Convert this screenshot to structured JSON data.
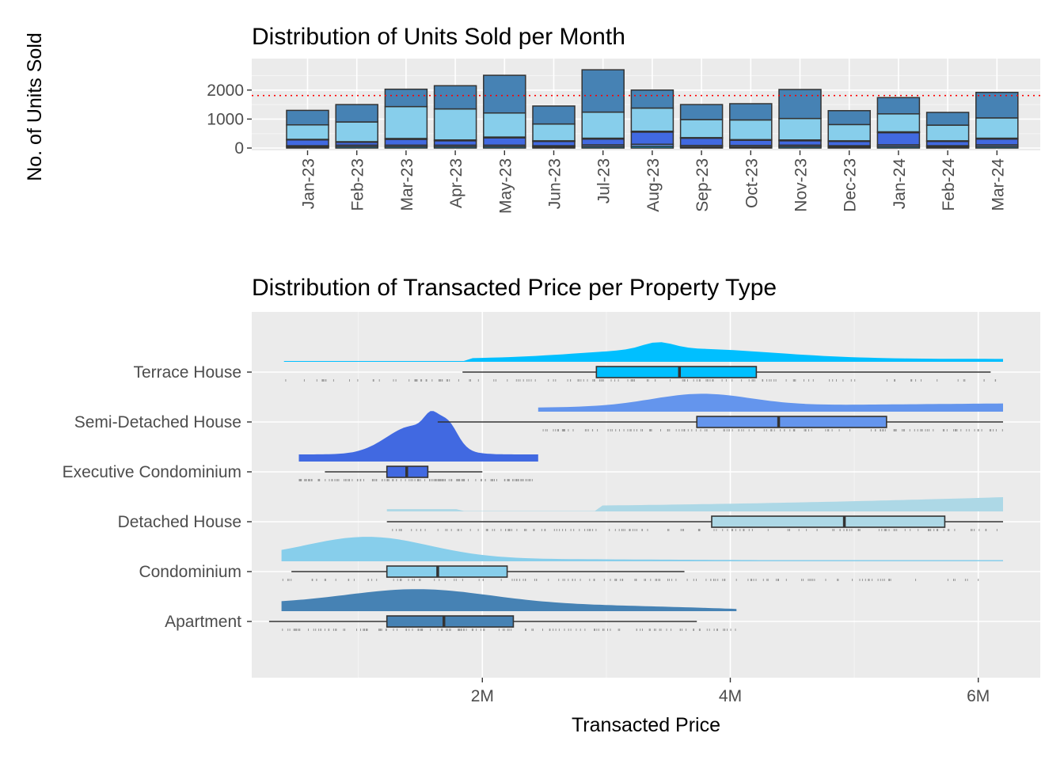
{
  "chart_data": [
    {
      "type": "bar",
      "title": "Distribution of Units Sold per Month",
      "ylabel": "No. of Units Sold",
      "xlabel": "",
      "ylim": [
        0,
        2950
      ],
      "yticks": [
        0,
        1000,
        2000
      ],
      "ytick_labels": [
        "0",
        "1000",
        "2000"
      ],
      "reference_line": {
        "value": 1810,
        "style": "dotted",
        "color": "#ff0000"
      },
      "categories": [
        "Jan-23",
        "Feb-23",
        "Mar-23",
        "Apr-23",
        "May-23",
        "Jun-23",
        "Jul-23",
        "Aug-23",
        "Sep-23",
        "Oct-23",
        "Nov-23",
        "Dec-23",
        "Jan-24",
        "Feb-24",
        "Mar-24"
      ],
      "stack_order": [
        "Apartment",
        "Condominium",
        "Detached House",
        "Executive Condominium",
        "Semi-Detached House",
        "Terrace House"
      ],
      "series": [
        {
          "color": "#00bfff",
          "values": [
            40,
            50,
            50,
            50,
            50,
            40,
            50,
            60,
            40,
            40,
            50,
            40,
            50,
            40,
            50
          ]
        },
        {
          "color": "#6495ed",
          "values": [
            40,
            50,
            50,
            50,
            50,
            40,
            60,
            70,
            50,
            50,
            50,
            40,
            60,
            40,
            60
          ]
        },
        {
          "color": "#4169e1",
          "values": [
            200,
            100,
            200,
            150,
            250,
            150,
            200,
            420,
            250,
            180,
            150,
            150,
            420,
            150,
            200
          ]
        },
        {
          "color": "#add8e6",
          "values": [
            20,
            20,
            30,
            30,
            30,
            20,
            30,
            30,
            20,
            20,
            30,
            20,
            30,
            20,
            30
          ]
        },
        {
          "color": "#87ceeb",
          "values": [
            500,
            680,
            1100,
            1070,
            830,
            580,
            900,
            800,
            620,
            680,
            740,
            560,
            620,
            540,
            700
          ]
        },
        {
          "color": "#4682b4",
          "values": [
            500,
            600,
            600,
            800,
            1300,
            620,
            1460,
            620,
            520,
            560,
            1000,
            480,
            560,
            440,
            880
          ]
        }
      ]
    },
    {
      "type": "raincloud",
      "title": "Distribution of Transacted Price per Property Type",
      "xlabel": "Transacted Price",
      "ylabel": "",
      "xlim": [
        140000,
        6500000
      ],
      "xticks": [
        2000000,
        4000000,
        6000000
      ],
      "xtick_labels": [
        "2M",
        "4M",
        "6M"
      ],
      "categories": [
        "Apartment",
        "Condominium",
        "Detached House",
        "Executive Condominium",
        "Semi-Detached House",
        "Terrace House"
      ],
      "boxes": [
        {
          "category": "Apartment",
          "color": "#4682b4",
          "whisker_low": 280000,
          "q1": 1230000,
          "median": 1690000,
          "q3": 2250000,
          "whisker_high": 3730000,
          "density_range": [
            380000,
            4050000
          ]
        },
        {
          "category": "Condominium",
          "color": "#87ceeb",
          "whisker_low": 460000,
          "q1": 1230000,
          "median": 1640000,
          "q3": 2200000,
          "whisker_high": 3630000,
          "density_range": [
            380000,
            6200000
          ]
        },
        {
          "category": "Detached House",
          "color": "#add8e6",
          "whisker_low": 1230000,
          "q1": 3850000,
          "median": 4920000,
          "q3": 5730000,
          "whisker_high": 6200000,
          "density_range": [
            1230000,
            6200000
          ]
        },
        {
          "category": "Executive Condominium",
          "color": "#4169e1",
          "whisker_low": 730000,
          "q1": 1230000,
          "median": 1390000,
          "q3": 1560000,
          "whisker_high": 2000000,
          "density_range": [
            520000,
            2450000
          ]
        },
        {
          "category": "Semi-Detached House",
          "color": "#6495ed",
          "whisker_low": 1640000,
          "q1": 3730000,
          "median": 4390000,
          "q3": 5260000,
          "whisker_high": 6200000,
          "density_range": [
            2450000,
            6200000
          ]
        },
        {
          "category": "Terrace House",
          "color": "#00bfff",
          "whisker_low": 1840000,
          "q1": 2920000,
          "median": 3590000,
          "q3": 4210000,
          "whisker_high": 6100000,
          "density_range": [
            400000,
            6200000
          ]
        }
      ]
    }
  ]
}
